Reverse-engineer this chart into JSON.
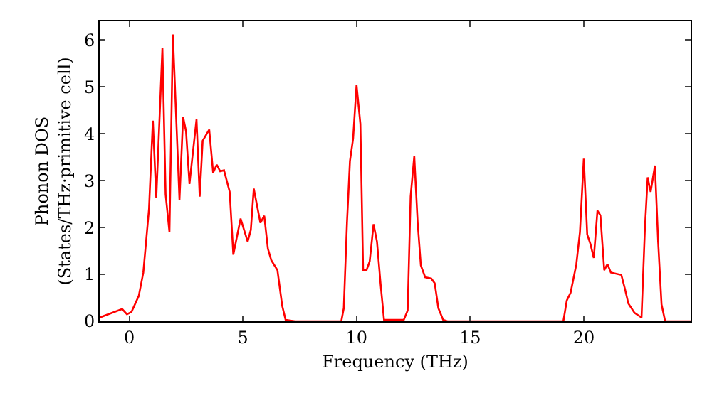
{
  "chart_data": {
    "type": "line",
    "xlabel": "Frequency (THz)",
    "ylabel": "Phonon DOS\n(States/THz·primitive cell)",
    "xlim": [
      -1.3,
      24.7
    ],
    "ylim": [
      0,
      6.4
    ],
    "xticks": [
      0,
      5,
      10,
      15,
      20
    ],
    "yticks": [
      0,
      1,
      2,
      3,
      4,
      5,
      6
    ],
    "marker": "none",
    "line_style": "solid",
    "series": [
      {
        "color": "#ff0000",
        "x": [
          -1.3,
          -0.31,
          -0.1,
          0.1,
          0.42,
          0.62,
          0.87,
          1.04,
          1.19,
          1.46,
          1.6,
          1.77,
          1.92,
          2.21,
          2.37,
          2.5,
          2.65,
          2.96,
          3.1,
          3.23,
          3.52,
          3.69,
          3.85,
          4.0,
          4.17,
          4.42,
          4.58,
          4.9,
          5.21,
          5.35,
          5.48,
          5.77,
          5.94,
          6.1,
          6.25,
          6.52,
          6.73,
          6.88,
          7.3,
          9.33,
          9.44,
          9.58,
          9.71,
          9.85,
          10.0,
          10.17,
          10.29,
          10.44,
          10.58,
          10.75,
          10.9,
          11.06,
          11.21,
          12.08,
          12.25,
          12.38,
          12.54,
          12.69,
          12.83,
          13.02,
          13.29,
          13.44,
          13.6,
          13.81,
          14.0,
          19.1,
          19.25,
          19.42,
          19.67,
          19.83,
          20.0,
          20.15,
          20.29,
          20.44,
          20.6,
          20.73,
          20.9,
          21.04,
          21.19,
          21.65,
          21.81,
          21.96,
          22.23,
          22.54,
          22.69,
          22.81,
          22.94,
          23.13,
          23.27,
          23.42,
          23.58,
          24.7
        ],
        "values": [
          0.08,
          0.26,
          0.15,
          0.2,
          0.54,
          1.04,
          2.4,
          4.28,
          2.63,
          5.83,
          2.71,
          1.9,
          6.12,
          2.59,
          4.36,
          4.05,
          2.93,
          4.31,
          2.66,
          3.85,
          4.09,
          3.17,
          3.34,
          3.2,
          3.22,
          2.76,
          1.42,
          2.19,
          1.7,
          1.95,
          2.83,
          2.1,
          2.25,
          1.55,
          1.3,
          1.09,
          0.33,
          0.03,
          0,
          0,
          0.28,
          2.1,
          3.42,
          3.9,
          5.04,
          4.21,
          1.09,
          1.09,
          1.28,
          2.07,
          1.7,
          0.79,
          0.03,
          0.03,
          0.23,
          2.66,
          3.52,
          2.1,
          1.19,
          0.94,
          0.91,
          0.81,
          0.28,
          0.03,
          0,
          0,
          0.44,
          0.61,
          1.21,
          1.9,
          3.47,
          1.85,
          1.65,
          1.35,
          2.36,
          2.26,
          1.09,
          1.22,
          1.04,
          0.99,
          0.69,
          0.38,
          0.18,
          0.08,
          2.0,
          3.07,
          2.76,
          3.32,
          1.7,
          0.36,
          0,
          0
        ]
      }
    ]
  }
}
